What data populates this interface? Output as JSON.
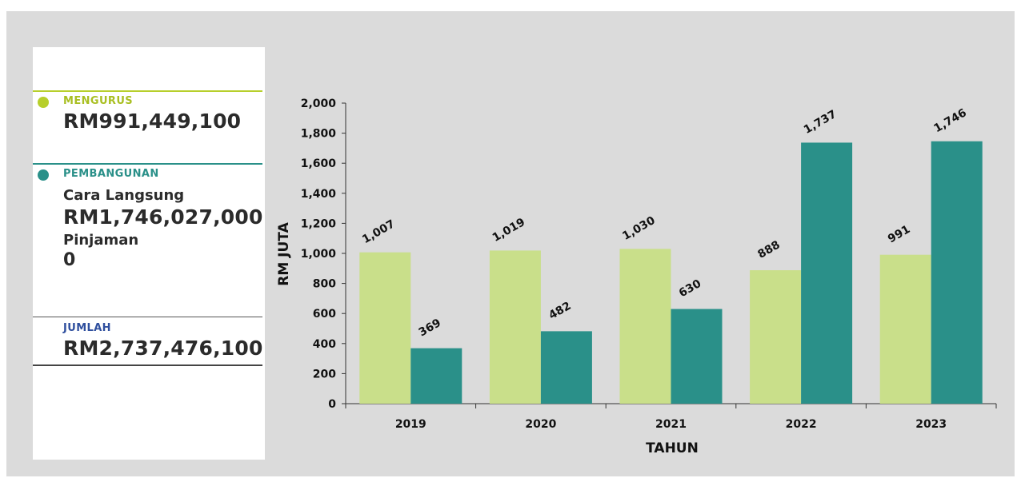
{
  "summary": {
    "mengurus": {
      "label": "MENGURUS",
      "value": "RM991,449,100",
      "color": "#b7cf2b"
    },
    "pembangunan": {
      "label": "PEMBANGUNAN",
      "color": "#2a9089",
      "cara_label": "Cara Langsung",
      "cara_value": "RM1,746,027,000",
      "pinjaman_label": "Pinjaman",
      "pinjaman_value": "0"
    },
    "jumlah": {
      "label": "JUMLAH",
      "value": "RM2,737,476,100",
      "color": "#2f4f9e"
    }
  },
  "chart_data": {
    "type": "bar",
    "categories": [
      "2019",
      "2020",
      "2021",
      "2022",
      "2023"
    ],
    "series": [
      {
        "values": [
          1007,
          1019,
          1030,
          888,
          991
        ],
        "data_labels": [
          "1,007",
          "1,019",
          "1,030",
          "888",
          "991"
        ],
        "color": "#c9df8a"
      },
      {
        "values": [
          369,
          482,
          630,
          1737,
          1746
        ],
        "data_labels": [
          "369",
          "482",
          "630",
          "1,737",
          "1,746"
        ],
        "color": "#2a9089"
      }
    ],
    "xlabel": "TAHUN",
    "ylabel": "RM JUTA",
    "ylim": [
      0,
      2000
    ],
    "yticks": [
      0,
      200,
      400,
      600,
      800,
      1000,
      1200,
      1400,
      1600,
      1800,
      2000
    ],
    "ytick_labels": [
      "0",
      "200",
      "400",
      "600",
      "800",
      "1,000",
      "1,200",
      "1,400",
      "1,600",
      "1,800",
      "2,000"
    ],
    "grid": false,
    "legend": "none"
  }
}
